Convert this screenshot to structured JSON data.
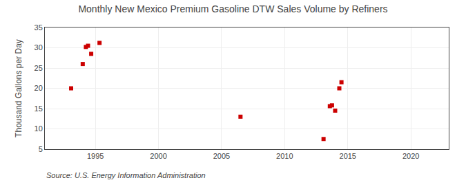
{
  "chart_data": {
    "type": "scatter",
    "title": "Monthly New Mexico Premium Gasoline DTW Sales Volume by Refiners",
    "ylabel": "Thousand Gallons per Day",
    "annotations": [
      "Source: U.S. Energy Information Administration"
    ],
    "x": [
      1993.08,
      1994.0,
      1994.25,
      1994.42,
      1994.67,
      1995.33,
      2006.5,
      2013.08,
      2013.58,
      2013.75,
      2014.0,
      2014.33,
      2014.5
    ],
    "values": [
      20.0,
      26.0,
      30.2,
      30.5,
      28.5,
      31.2,
      13.0,
      7.5,
      15.6,
      15.8,
      14.5,
      20.0,
      21.5
    ],
    "color": "#cc0000",
    "marker": "square",
    "xlim": [
      1991,
      2023
    ],
    "ylim": [
      5,
      35
    ],
    "xticks": [
      1995,
      2000,
      2005,
      2010,
      2015,
      2020
    ],
    "yticks": [
      5,
      10,
      15,
      20,
      25,
      30,
      35
    ],
    "grid": true
  }
}
